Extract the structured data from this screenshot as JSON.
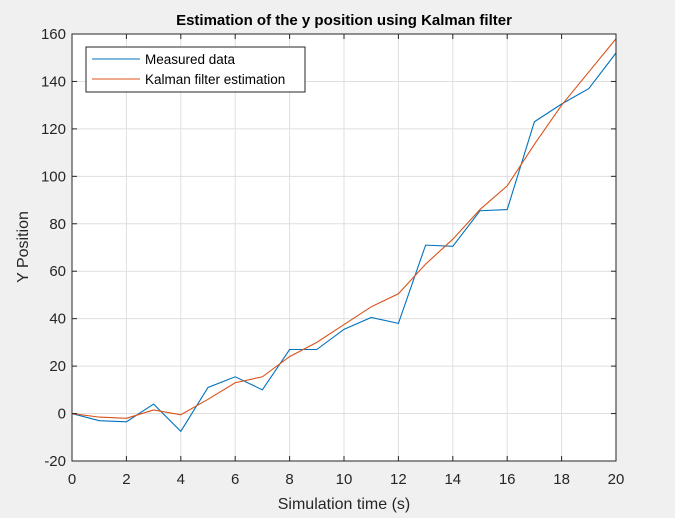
{
  "chart_data": {
    "type": "line",
    "title": "Estimation of the y position using Kalman filter",
    "xlabel": "Simulation time (s)",
    "ylabel": "Y Position",
    "xlim": [
      0,
      20
    ],
    "ylim": [
      -20,
      160
    ],
    "xticks": [
      0,
      2,
      4,
      6,
      8,
      10,
      12,
      14,
      16,
      18,
      20
    ],
    "yticks": [
      -20,
      0,
      20,
      40,
      60,
      80,
      100,
      120,
      140,
      160
    ],
    "grid": true,
    "legend_position": "top-left",
    "x": [
      0,
      1,
      2,
      3,
      4,
      5,
      6,
      7,
      8,
      9,
      10,
      11,
      12,
      13,
      14,
      15,
      16,
      17,
      18,
      19,
      20
    ],
    "series": [
      {
        "name": "Measured data",
        "color": "#0072bd",
        "values": [
          0,
          -3,
          -3.5,
          4,
          -7.5,
          11,
          15.5,
          10,
          27,
          27,
          35.5,
          40.5,
          38,
          71,
          70.5,
          85.5,
          86,
          123,
          130.5,
          137,
          152
        ]
      },
      {
        "name": "Kalman filter estimation",
        "color": "#d95319",
        "values": [
          0,
          -1.5,
          -2,
          1.5,
          -0.5,
          6,
          13,
          15.5,
          24,
          30,
          37.5,
          45,
          50.5,
          63,
          73.5,
          86,
          96,
          113.5,
          130,
          144,
          158
        ]
      }
    ]
  }
}
